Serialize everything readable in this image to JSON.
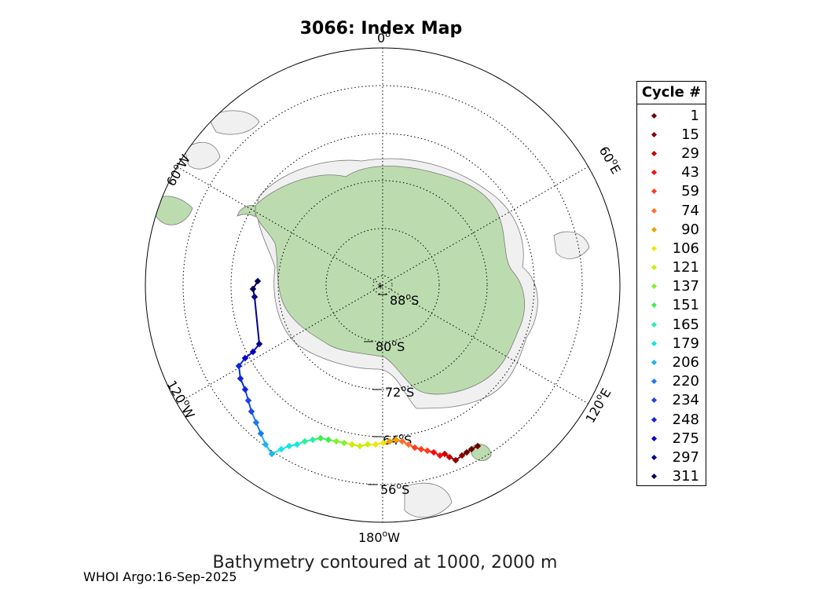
{
  "title": "3066: Index Map",
  "caption": "Bathymetry contoured at 1000, 2000 m",
  "credit": "WHOI Argo:16-Sep-2025",
  "colors": {
    "land": "#bcdcb0",
    "shelf": "#f0f0f0",
    "contour": "#7a7a7a",
    "grid": "#000000",
    "background": "#ffffff"
  },
  "pole_marker": "*",
  "longitude_labels": [
    {
      "id": "lon-0",
      "text": "0°",
      "deg": "0",
      "suffix": ""
    },
    {
      "id": "lon-60e",
      "text": "60°E",
      "deg": "60",
      "suffix": "E"
    },
    {
      "id": "lon-120e",
      "text": "120°E",
      "deg": "120",
      "suffix": "E"
    },
    {
      "id": "lon-180w",
      "text": "180°W",
      "deg": "180",
      "suffix": "W"
    },
    {
      "id": "lon-120w",
      "text": "120°W",
      "deg": "120",
      "suffix": "W"
    },
    {
      "id": "lon-60w",
      "text": "60°W",
      "deg": "60",
      "suffix": "W"
    }
  ],
  "latitude_labels": [
    {
      "id": "lat-88",
      "deg": "88",
      "suffix": "S"
    },
    {
      "id": "lat-80",
      "deg": "80",
      "suffix": "S"
    },
    {
      "id": "lat-72",
      "deg": "72",
      "suffix": "S"
    },
    {
      "id": "lat-64",
      "deg": "64",
      "suffix": "S"
    },
    {
      "id": "lat-56",
      "deg": "56",
      "suffix": "S"
    }
  ],
  "legend": {
    "title": "Cycle #",
    "items": [
      {
        "cycle": "1",
        "color": "#6b0000"
      },
      {
        "cycle": "15",
        "color": "#8b0000"
      },
      {
        "cycle": "29",
        "color": "#c80000"
      },
      {
        "cycle": "43",
        "color": "#f01010"
      },
      {
        "cycle": "59",
        "color": "#ff3c1e"
      },
      {
        "cycle": "74",
        "color": "#ff6e28"
      },
      {
        "cycle": "90",
        "color": "#f0a000"
      },
      {
        "cycle": "106",
        "color": "#f0e600"
      },
      {
        "cycle": "121",
        "color": "#c8f000"
      },
      {
        "cycle": "137",
        "color": "#82f032"
      },
      {
        "cycle": "151",
        "color": "#3cf050"
      },
      {
        "cycle": "165",
        "color": "#28f0a0"
      },
      {
        "cycle": "179",
        "color": "#14e6e6"
      },
      {
        "cycle": "206",
        "color": "#1eb4f0"
      },
      {
        "cycle": "220",
        "color": "#1e78f0"
      },
      {
        "cycle": "234",
        "color": "#1e46e6"
      },
      {
        "cycle": "248",
        "color": "#0a28dc"
      },
      {
        "cycle": "275",
        "color": "#0000c8"
      },
      {
        "cycle": "297",
        "color": "#00008c"
      },
      {
        "cycle": "311",
        "color": "#000050"
      }
    ]
  }
}
